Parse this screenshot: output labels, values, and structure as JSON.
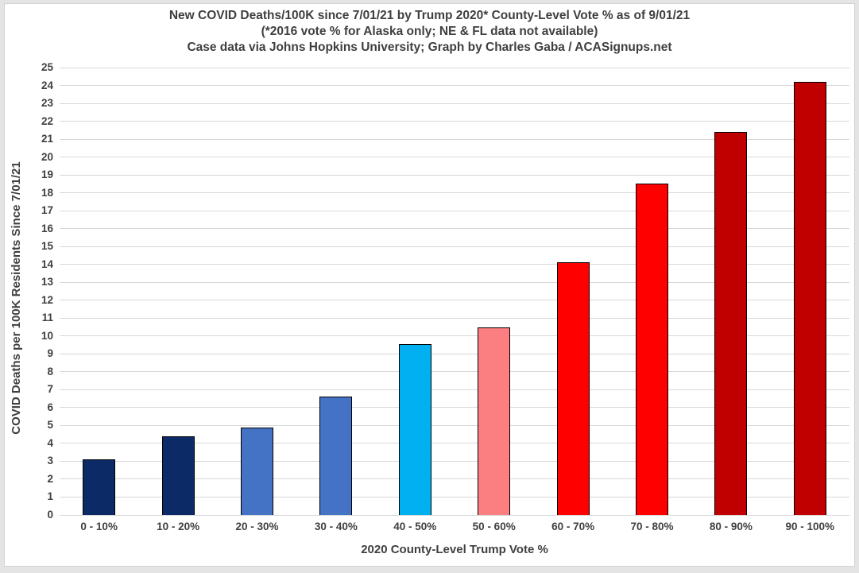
{
  "chart_data": {
    "type": "bar",
    "title": "New COVID Deaths/100K since 7/01/21 by Trump 2020* County-Level Vote % as of 9/01/21",
    "subtitle": "(*2016 vote % for Alaska only; NE & FL data not available)",
    "attribution": "Case data via Johns Hopkins University; Graph by Charles Gaba / ACASignups.net",
    "xlabel": "2020 County-Level Trump Vote %",
    "ylabel": "COVID Deaths per 100K Residents Since 7/01/21",
    "categories": [
      "0 - 10%",
      "10 - 20%",
      "20 - 30%",
      "30 - 40%",
      "40 - 50%",
      "50 - 60%",
      "60 - 70%",
      "70 - 80%",
      "80 - 90%",
      "90 - 100%"
    ],
    "values": [
      3.1,
      4.4,
      4.9,
      6.6,
      9.55,
      10.5,
      14.1,
      18.5,
      21.4,
      24.2
    ],
    "bar_colors": [
      "#0c2a66",
      "#0c2a66",
      "#4472c4",
      "#4472c4",
      "#00b0f0",
      "#fb7e81",
      "#ff0000",
      "#ff0000",
      "#c00000",
      "#c00000"
    ],
    "bar_outline_color": "#000000",
    "ylim": [
      0,
      25
    ],
    "ytick_step": 1,
    "grid": true,
    "gridline_color": "#d8d8d8",
    "legend_position": "none",
    "text_color": "#3f3f3f",
    "plot_background": "#ffffff"
  }
}
